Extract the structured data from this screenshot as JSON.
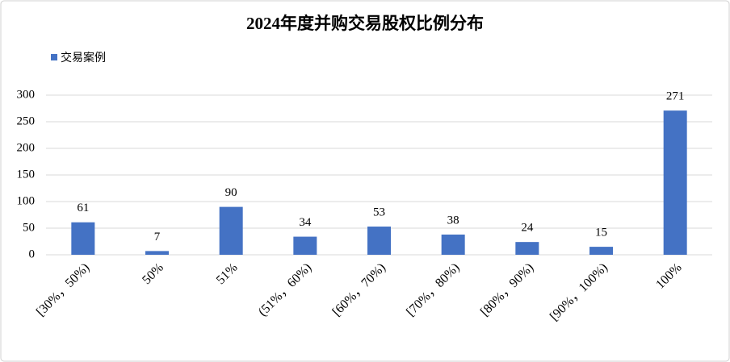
{
  "chart_data": {
    "type": "bar",
    "title": "2024年度并购交易股权比例分布",
    "categories": [
      "[30%，50%)",
      "50%",
      "51%",
      "(51%，60%)",
      "[60%，70%)",
      "[70%，80%)",
      "[80%，90%)",
      "[90%，100%)",
      "100%"
    ],
    "series": [
      {
        "name": "交易案例",
        "color": "#4472c4",
        "values": [
          61,
          7,
          90,
          34,
          53,
          38,
          24,
          15,
          271
        ]
      }
    ],
    "ylim": [
      0,
      300
    ],
    "yticks": [
      0,
      50,
      100,
      150,
      200,
      250,
      300
    ],
    "grid": true,
    "legend": "top-left"
  }
}
